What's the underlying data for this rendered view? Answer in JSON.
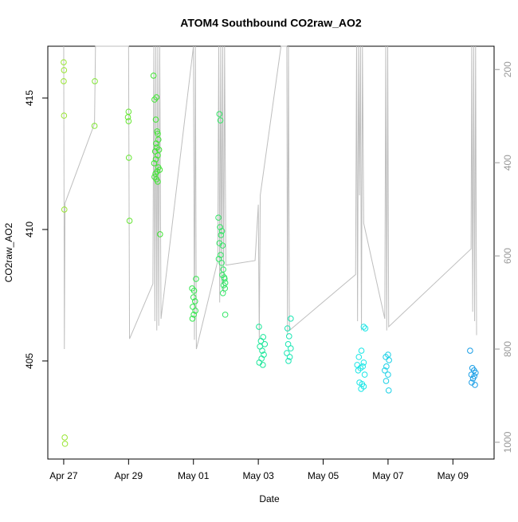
{
  "chart_data": {
    "type": "scatter",
    "title": "ATOM4 Southbound CO2raw_AO2",
    "x_label": "Date",
    "y_label": "CO2raw_AO2",
    "xlim": [
      -0.49,
      13.27
    ],
    "xticks": [
      {
        "value": 0,
        "label": "Apr 27"
      },
      {
        "value": 2,
        "label": "Apr 29"
      },
      {
        "value": 4,
        "label": "May 01"
      },
      {
        "value": 6,
        "label": "May 03"
      },
      {
        "value": 8,
        "label": "May 05"
      },
      {
        "value": 10,
        "label": "May 07"
      },
      {
        "value": 12,
        "label": "May 09"
      }
    ],
    "ylim": [
      401.27,
      416.97
    ],
    "yticks": [
      405,
      410,
      415
    ],
    "y2lim": [
      1036,
      150
    ],
    "y2ticks": [
      200,
      400,
      600,
      800,
      1000
    ],
    "series": [
      {
        "type": "line",
        "axis": "y2",
        "color": "#bebebe",
        "x": [
          0.0,
          0.02,
          0.04,
          0.95,
          0.98,
          2.0,
          2.03,
          2.75,
          2.78,
          2.81,
          2.84,
          2.87,
          2.9,
          2.93,
          2.96,
          3.0,
          4.0,
          4.03,
          4.06,
          4.09,
          4.75,
          4.78,
          4.81,
          4.84,
          4.87,
          4.9,
          4.93,
          4.96,
          5.0,
          5.9,
          6.0,
          6.03,
          6.06,
          6.7,
          6.88,
          6.9,
          6.93,
          6.96,
          9.0,
          9.03,
          9.06,
          9.09,
          9.12,
          9.15,
          9.18,
          9.21,
          9.25,
          9.9,
          9.93,
          9.96,
          9.99,
          10.02,
          12.56,
          12.58,
          12.61,
          12.64,
          12.67,
          12.7,
          12.73
        ],
        "values": [
          150,
          800,
          487,
          316,
          150,
          150,
          778,
          660,
          150,
          740,
          150,
          760,
          150,
          750,
          150,
          735,
          150,
          780,
          150,
          800,
          610,
          150,
          700,
          150,
          660,
          150,
          680,
          150,
          620,
          610,
          490,
          780,
          470,
          150,
          150,
          770,
          150,
          760,
          640,
          150,
          740,
          150,
          470,
          150,
          760,
          150,
          530,
          735,
          150,
          760,
          150,
          752,
          585,
          150,
          720,
          150,
          740,
          150,
          770
        ]
      },
      {
        "color": "#99e633",
        "x": [
          0.0,
          0.01,
          0.0,
          0.01,
          0.02,
          0.03,
          0.04
        ],
        "values": [
          416.36,
          416.06,
          415.64,
          414.33,
          410.76,
          402.09,
          401.85
        ]
      },
      {
        "color": "#80e633",
        "x": [
          0.96,
          0.95
        ],
        "values": [
          415.64,
          413.94
        ]
      },
      {
        "color": "#66e633",
        "x": [
          2.0,
          1.98,
          2.0,
          2.01,
          2.03
        ],
        "values": [
          414.48,
          414.27,
          414.12,
          412.73,
          410.33
        ]
      },
      {
        "color": "#40e633",
        "x": [
          2.77,
          2.8,
          2.86,
          2.84,
          2.88,
          2.9,
          2.92,
          2.85,
          2.87,
          2.94,
          2.82,
          2.9,
          2.84,
          2.79,
          2.92,
          2.96,
          2.88,
          2.83,
          2.8,
          2.86,
          2.9,
          2.97
        ],
        "values": [
          415.85,
          414.94,
          415.03,
          414.18,
          413.73,
          413.64,
          413.42,
          413.27,
          413.12,
          413.03,
          412.97,
          412.82,
          412.67,
          412.52,
          412.36,
          412.27,
          412.21,
          412.12,
          412.0,
          411.91,
          411.82,
          409.82
        ]
      },
      {
        "color": "#33e64d",
        "x": [
          4.08,
          3.96,
          4.02,
          4.0,
          4.05,
          3.98,
          4.06,
          4.01,
          3.97
        ],
        "values": [
          408.12,
          407.76,
          407.67,
          407.42,
          407.27,
          407.06,
          406.91,
          406.76,
          406.61
        ]
      },
      {
        "color": "#33e666",
        "x": [
          4.8,
          4.83,
          4.77,
          4.82,
          4.88,
          4.85,
          4.8,
          4.9,
          4.84,
          4.78,
          4.87,
          4.92,
          4.89,
          4.95,
          4.96,
          4.98,
          4.93,
          4.97,
          4.91,
          4.98
        ],
        "values": [
          414.39,
          414.15,
          410.45,
          410.09,
          409.94,
          409.79,
          409.48,
          409.39,
          409.03,
          408.88,
          408.73,
          408.48,
          408.27,
          408.18,
          408.12,
          407.97,
          407.88,
          407.76,
          407.58,
          406.76
        ]
      },
      {
        "color": "#1ae699",
        "x": [
          6.02,
          6.15,
          6.08,
          6.2,
          6.05,
          6.12,
          6.17,
          6.1,
          6.03,
          6.14
        ],
        "values": [
          406.3,
          405.91,
          405.76,
          405.64,
          405.55,
          405.39,
          405.24,
          405.09,
          404.94,
          404.85
        ]
      },
      {
        "color": "#1ae6b3",
        "x": [
          7.0,
          6.9,
          6.95,
          6.92,
          7.0,
          6.88,
          6.97,
          6.93
        ],
        "values": [
          406.61,
          406.24,
          405.94,
          405.64,
          405.48,
          405.3,
          405.15,
          405.0
        ]
      },
      {
        "color": "#1ae6e6",
        "x": [
          9.25,
          9.3,
          9.18,
          9.1,
          9.25,
          9.05,
          9.22,
          9.15,
          9.08,
          9.28,
          9.12,
          9.2,
          9.25,
          9.17
        ],
        "values": [
          406.3,
          406.24,
          405.39,
          405.15,
          404.94,
          404.85,
          404.79,
          404.73,
          404.64,
          404.48,
          404.18,
          404.12,
          404.03,
          403.94
        ]
      },
      {
        "color": "#1ad0e6",
        "x": [
          10.0,
          9.93,
          10.03,
          9.95,
          9.9,
          10.0,
          9.94,
          10.02
        ],
        "values": [
          405.24,
          405.15,
          405.03,
          404.79,
          404.64,
          404.48,
          404.24,
          403.88
        ]
      },
      {
        "color": "#1a9ee6",
        "x": [
          12.53,
          12.6,
          12.65,
          12.7,
          12.57,
          12.66,
          12.62,
          12.58,
          12.68
        ],
        "values": [
          405.39,
          404.73,
          404.64,
          404.55,
          404.48,
          404.42,
          404.33,
          404.18,
          404.09
        ]
      }
    ]
  }
}
